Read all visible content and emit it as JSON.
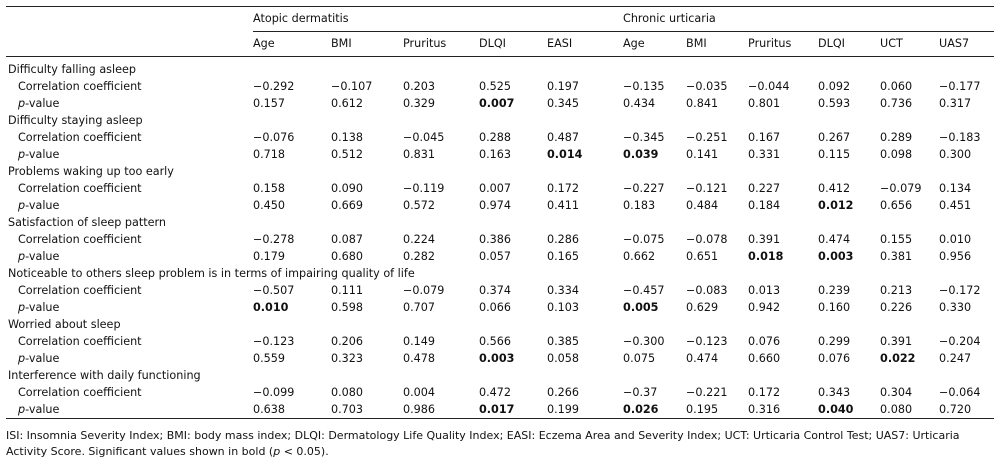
{
  "header": {
    "groups": [
      "Atopic dermatitis",
      "Chronic urticaria"
    ],
    "ad_columns": [
      "Age",
      "BMI",
      "Pruritus",
      "DLQI",
      "EASI"
    ],
    "cu_columns": [
      "Age",
      "BMI",
      "Pruritus",
      "DLQI",
      "UCT",
      "UAS7"
    ]
  },
  "row_labels": {
    "coef": "Correlation coefficient",
    "p_italic": "p",
    "p_rest": "-value"
  },
  "sections": [
    {
      "title": "Difficulty falling asleep",
      "coef": [
        "−0.292",
        "−0.107",
        "0.203",
        "0.525",
        "0.197",
        "−0.135",
        "−0.035",
        "−0.044",
        "0.092",
        "0.060",
        "−0.177"
      ],
      "p": [
        "0.157",
        "0.612",
        "0.329",
        "0.007",
        "0.345",
        "0.434",
        "0.841",
        "0.801",
        "0.593",
        "0.736",
        "0.317"
      ],
      "p_bold": [
        false,
        false,
        false,
        true,
        false,
        false,
        false,
        false,
        false,
        false,
        false
      ]
    },
    {
      "title": "Difficulty staying asleep",
      "coef": [
        "−0.076",
        "0.138",
        "−0.045",
        "0.288",
        "0.487",
        "−0.345",
        "−0.251",
        "0.167",
        "0.267",
        "0.289",
        "−0.183"
      ],
      "p": [
        "0.718",
        "0.512",
        "0.831",
        "0.163",
        "0.014",
        "0.039",
        "0.141",
        "0.331",
        "0.115",
        "0.098",
        "0.300"
      ],
      "p_bold": [
        false,
        false,
        false,
        false,
        true,
        true,
        false,
        false,
        false,
        false,
        false
      ]
    },
    {
      "title": "Problems waking up too early",
      "coef": [
        "0.158",
        "0.090",
        "−0.119",
        "0.007",
        "0.172",
        "−0.227",
        "−0.121",
        "0.227",
        "0.412",
        "−0.079",
        "0.134"
      ],
      "p": [
        "0.450",
        "0.669",
        "0.572",
        "0.974",
        "0.411",
        "0.183",
        "0.484",
        "0.184",
        "0.012",
        "0.656",
        "0.451"
      ],
      "p_bold": [
        false,
        false,
        false,
        false,
        false,
        false,
        false,
        false,
        true,
        false,
        false
      ]
    },
    {
      "title": "Satisfaction of sleep pattern",
      "coef": [
        "−0.278",
        "0.087",
        "0.224",
        "0.386",
        "0.286",
        "−0.075",
        "−0.078",
        "0.391",
        "0.474",
        "0.155",
        "0.010"
      ],
      "p": [
        "0.179",
        "0.680",
        "0.282",
        "0.057",
        "0.165",
        "0.662",
        "0.651",
        "0.018",
        "0.003",
        "0.381",
        "0.956"
      ],
      "p_bold": [
        false,
        false,
        false,
        false,
        false,
        false,
        false,
        true,
        true,
        false,
        false
      ]
    },
    {
      "title": "Noticeable to others sleep problem is in terms of impairing quality of life",
      "coef": [
        "−0.507",
        "0.111",
        "−0.079",
        "0.374",
        "0.334",
        "−0.457",
        "−0.083",
        "0.013",
        "0.239",
        "0.213",
        "−0.172"
      ],
      "p": [
        "0.010",
        "0.598",
        "0.707",
        "0.066",
        "0.103",
        "0.005",
        "0.629",
        "0.942",
        "0.160",
        "0.226",
        "0.330"
      ],
      "p_bold": [
        true,
        false,
        false,
        false,
        false,
        true,
        false,
        false,
        false,
        false,
        false
      ]
    },
    {
      "title": "Worried about sleep",
      "coef": [
        "−0.123",
        "0.206",
        "0.149",
        "0.566",
        "0.385",
        "−0.300",
        "−0.123",
        "0.076",
        "0.299",
        "0.391",
        "−0.204"
      ],
      "p": [
        "0.559",
        "0.323",
        "0.478",
        "0.003",
        "0.058",
        "0.075",
        "0.474",
        "0.660",
        "0.076",
        "0.022",
        "0.247"
      ],
      "p_bold": [
        false,
        false,
        false,
        true,
        false,
        false,
        false,
        false,
        false,
        true,
        false
      ]
    },
    {
      "title": "Interference with daily functioning",
      "coef": [
        "−0.099",
        "0.080",
        "0.004",
        "0.472",
        "0.266",
        "−0.37",
        "−0.221",
        "0.172",
        "0.343",
        "0.304",
        "−0.064"
      ],
      "p": [
        "0.638",
        "0.703",
        "0.986",
        "0.017",
        "0.199",
        "0.026",
        "0.195",
        "0.316",
        "0.040",
        "0.080",
        "0.720"
      ],
      "p_bold": [
        false,
        false,
        false,
        true,
        false,
        true,
        false,
        false,
        true,
        false,
        false
      ]
    }
  ],
  "footnote": {
    "main": "ISI: Insomnia Severity Index; BMI: body mass index; DLQI: Dermatology Life Quality Index; EASI: Eczema Area and Severity Index; UCT: Urticaria Control Test; UAS7: Urticaria Activity Score. Significant values shown in bold (",
    "p_italic": "p",
    "tail": " < 0.05)."
  }
}
